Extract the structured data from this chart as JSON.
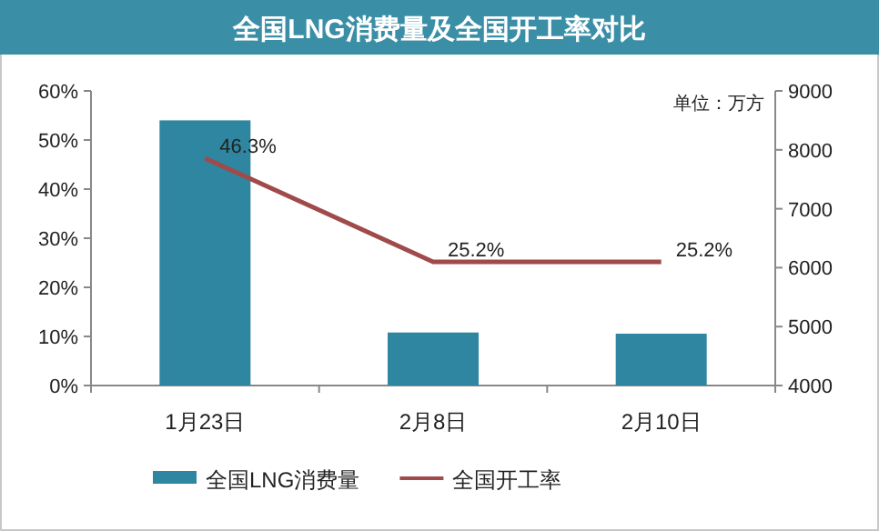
{
  "chart_data": {
    "type": "bar",
    "title": "全国LNG消费量及全国开工率对比",
    "categories": [
      "1月23日",
      "2月8日",
      "2月10日"
    ],
    "series": [
      {
        "name": "全国LNG消费量",
        "axis": "y2",
        "color": "#2e86a0",
        "values": [
          8500,
          4900,
          4880
        ]
      },
      {
        "name": "全国开工率",
        "type": "line",
        "axis": "y",
        "color": "#a04a4a",
        "values": [
          46.3,
          25.2,
          25.2
        ],
        "value_labels": [
          "46.3%",
          "25.2%",
          "25.2%"
        ]
      }
    ],
    "ylim": [
      0,
      60
    ],
    "yticks": [
      {
        "value": 0,
        "label": "0%"
      },
      {
        "value": 10,
        "label": "10%"
      },
      {
        "value": 20,
        "label": "20%"
      },
      {
        "value": 30,
        "label": "30%"
      },
      {
        "value": 40,
        "label": "40%"
      },
      {
        "value": 50,
        "label": "50%"
      },
      {
        "value": 60,
        "label": "60%"
      }
    ],
    "y2lim": [
      4000,
      9000
    ],
    "y2ticks": [
      4000,
      5000,
      6000,
      7000,
      8000,
      9000
    ],
    "annotations": [
      "单位：万方"
    ],
    "legend": "bottom",
    "grid": false
  }
}
